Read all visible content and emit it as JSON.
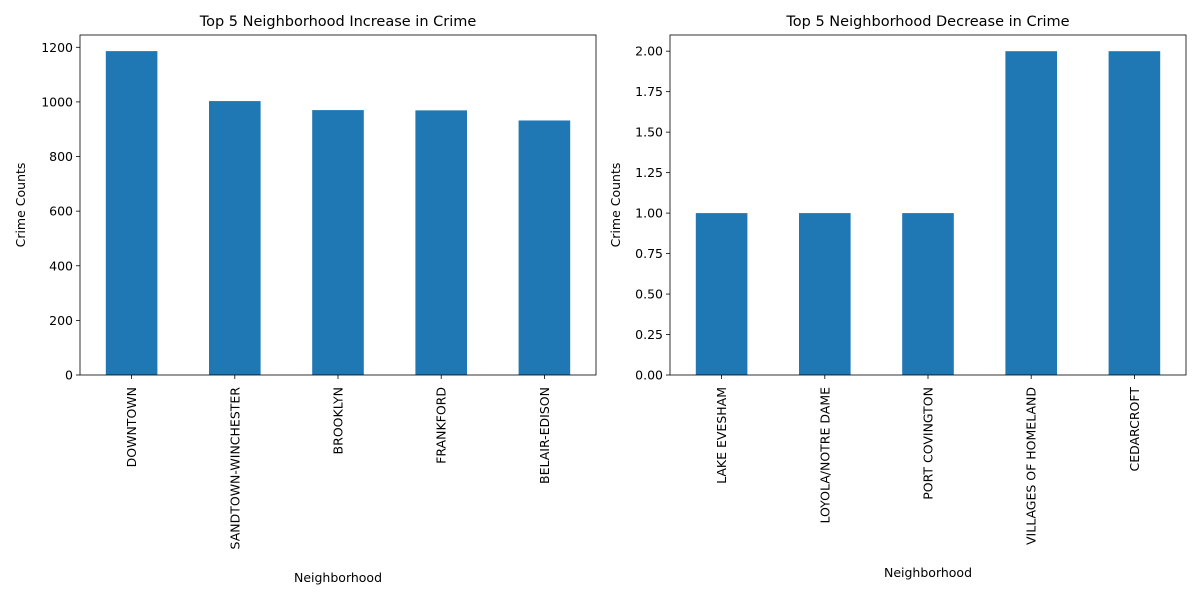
{
  "chart_data": [
    {
      "type": "bar",
      "title": "Top 5 Neighborhood Increase in Crime",
      "xlabel": "Neighborhood",
      "ylabel": "Crime Counts",
      "categories": [
        "DOWNTOWN",
        "SANDTOWN-WINCHESTER",
        "BROOKLYN",
        "FRANKFORD",
        "BELAIR-EDISON"
      ],
      "values": [
        1186,
        1003,
        970,
        969,
        932
      ],
      "ylim": [
        0,
        1245
      ],
      "yticks": [
        0,
        200,
        400,
        600,
        800,
        1000,
        1200
      ],
      "ytick_labels": [
        "0",
        "200",
        "400",
        "600",
        "800",
        "1000",
        "1200"
      ],
      "bar_color": "#1f77b4",
      "grid": false,
      "legend": "none"
    },
    {
      "type": "bar",
      "title": "Top 5 Neighborhood Decrease in Crime",
      "xlabel": "Neighborhood",
      "ylabel": "Crime Counts",
      "categories": [
        "LAKE EVESHAM",
        "LOYOLA/NOTRE DAME",
        "PORT COVINGTON",
        "VILLAGES OF HOMELAND",
        "CEDARCROFT"
      ],
      "values": [
        1,
        1,
        1,
        2,
        2
      ],
      "ylim": [
        0,
        2.1
      ],
      "yticks": [
        0,
        0.25,
        0.5,
        0.75,
        1.0,
        1.25,
        1.5,
        1.75,
        2.0
      ],
      "ytick_labels": [
        "0.00",
        "0.25",
        "0.50",
        "0.75",
        "1.00",
        "1.25",
        "1.50",
        "1.75",
        "2.00"
      ],
      "bar_color": "#1f77b4",
      "grid": false,
      "legend": "none"
    }
  ]
}
